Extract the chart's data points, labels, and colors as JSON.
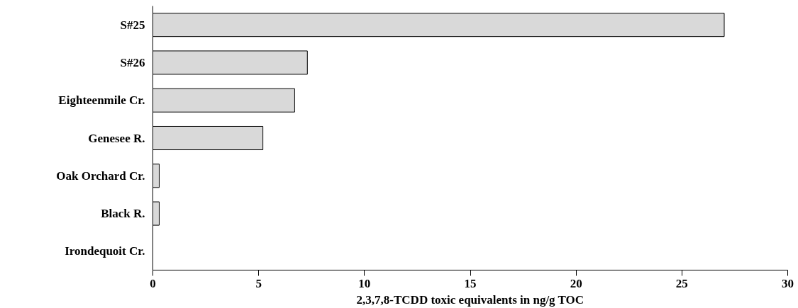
{
  "chart_data": {
    "type": "bar",
    "orientation": "horizontal",
    "categories": [
      "S#25",
      "S#26",
      "Eighteenmile Cr.",
      "Genesee R.",
      "Oak Orchard Cr.",
      "Black R.",
      "Irondequoit Cr."
    ],
    "values": [
      27.0,
      7.3,
      6.7,
      5.2,
      0.3,
      0.3,
      null
    ],
    "color": "#d9d9d9",
    "xlabel": "2,3,7,8-TCDD toxic equivalents in ng/g TOC",
    "xlim": [
      0,
      30
    ],
    "xticks": [
      0,
      5,
      10,
      15,
      20,
      25,
      30
    ],
    "grid": false
  }
}
